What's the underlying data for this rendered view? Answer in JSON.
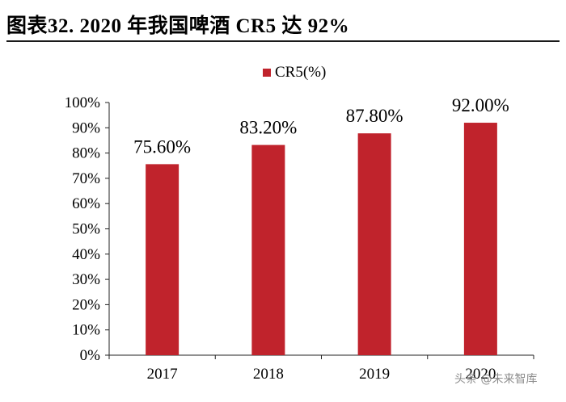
{
  "title": "图表32. 2020 年我国啤酒 CR5 达 92%",
  "watermark": "头条 @未来智库",
  "chart_data": {
    "type": "bar",
    "categories": [
      "2017",
      "2018",
      "2019",
      "2020"
    ],
    "series": [
      {
        "name": "CR5(%)",
        "values": [
          75.6,
          83.2,
          87.8,
          92.0
        ],
        "color": "#c0232c"
      }
    ],
    "data_labels": [
      "75.60%",
      "83.20%",
      "87.80%",
      "92.00%"
    ],
    "ylim": [
      0,
      100
    ],
    "yticks": [
      "0%",
      "10%",
      "20%",
      "30%",
      "40%",
      "50%",
      "60%",
      "70%",
      "80%",
      "90%",
      "100%"
    ],
    "xlabel": "",
    "ylabel": "",
    "legend_position": "top-center",
    "grid": false
  }
}
